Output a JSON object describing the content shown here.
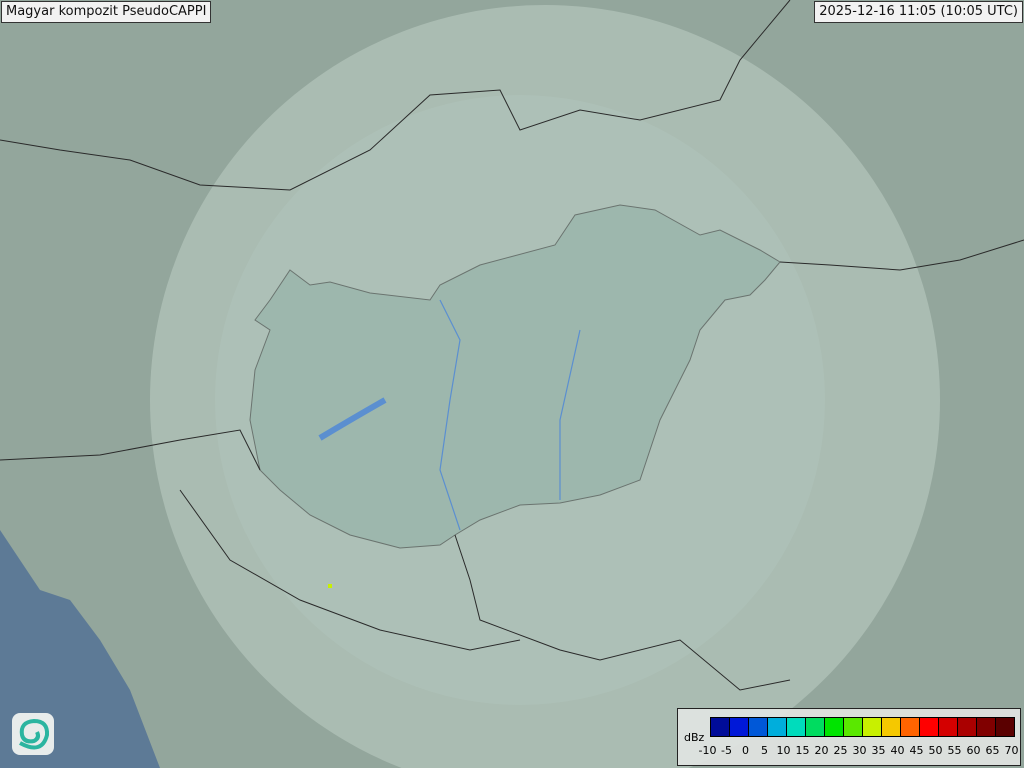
{
  "header": {
    "title": "Magyar kompozit  PseudoCAPPI",
    "timestamp": "2025-12-16 11:05 (10:05 UTC)"
  },
  "legend": {
    "unit": "dBz",
    "ticks": [
      "-10",
      "-5",
      "0",
      "5",
      "10",
      "15",
      "20",
      "25",
      "30",
      "35",
      "40",
      "45",
      "50",
      "55",
      "60",
      "65",
      "70"
    ],
    "colors": [
      "#000c99",
      "#0018d8",
      "#0058d8",
      "#00aedc",
      "#00dcbc",
      "#00dc60",
      "#00e400",
      "#5ae800",
      "#c8f000",
      "#f5c800",
      "#ff6400",
      "#ff0000",
      "#d40000",
      "#aa0000",
      "#800000",
      "#5a0000"
    ]
  },
  "logo": {
    "icon": "met-service-swirl-logo"
  },
  "colors": {
    "sea": "#5d7a96",
    "land": "#8fa39a",
    "coverage": "#c8d6cf",
    "border": "#2a2a2a",
    "river": "#5b8fd0"
  }
}
